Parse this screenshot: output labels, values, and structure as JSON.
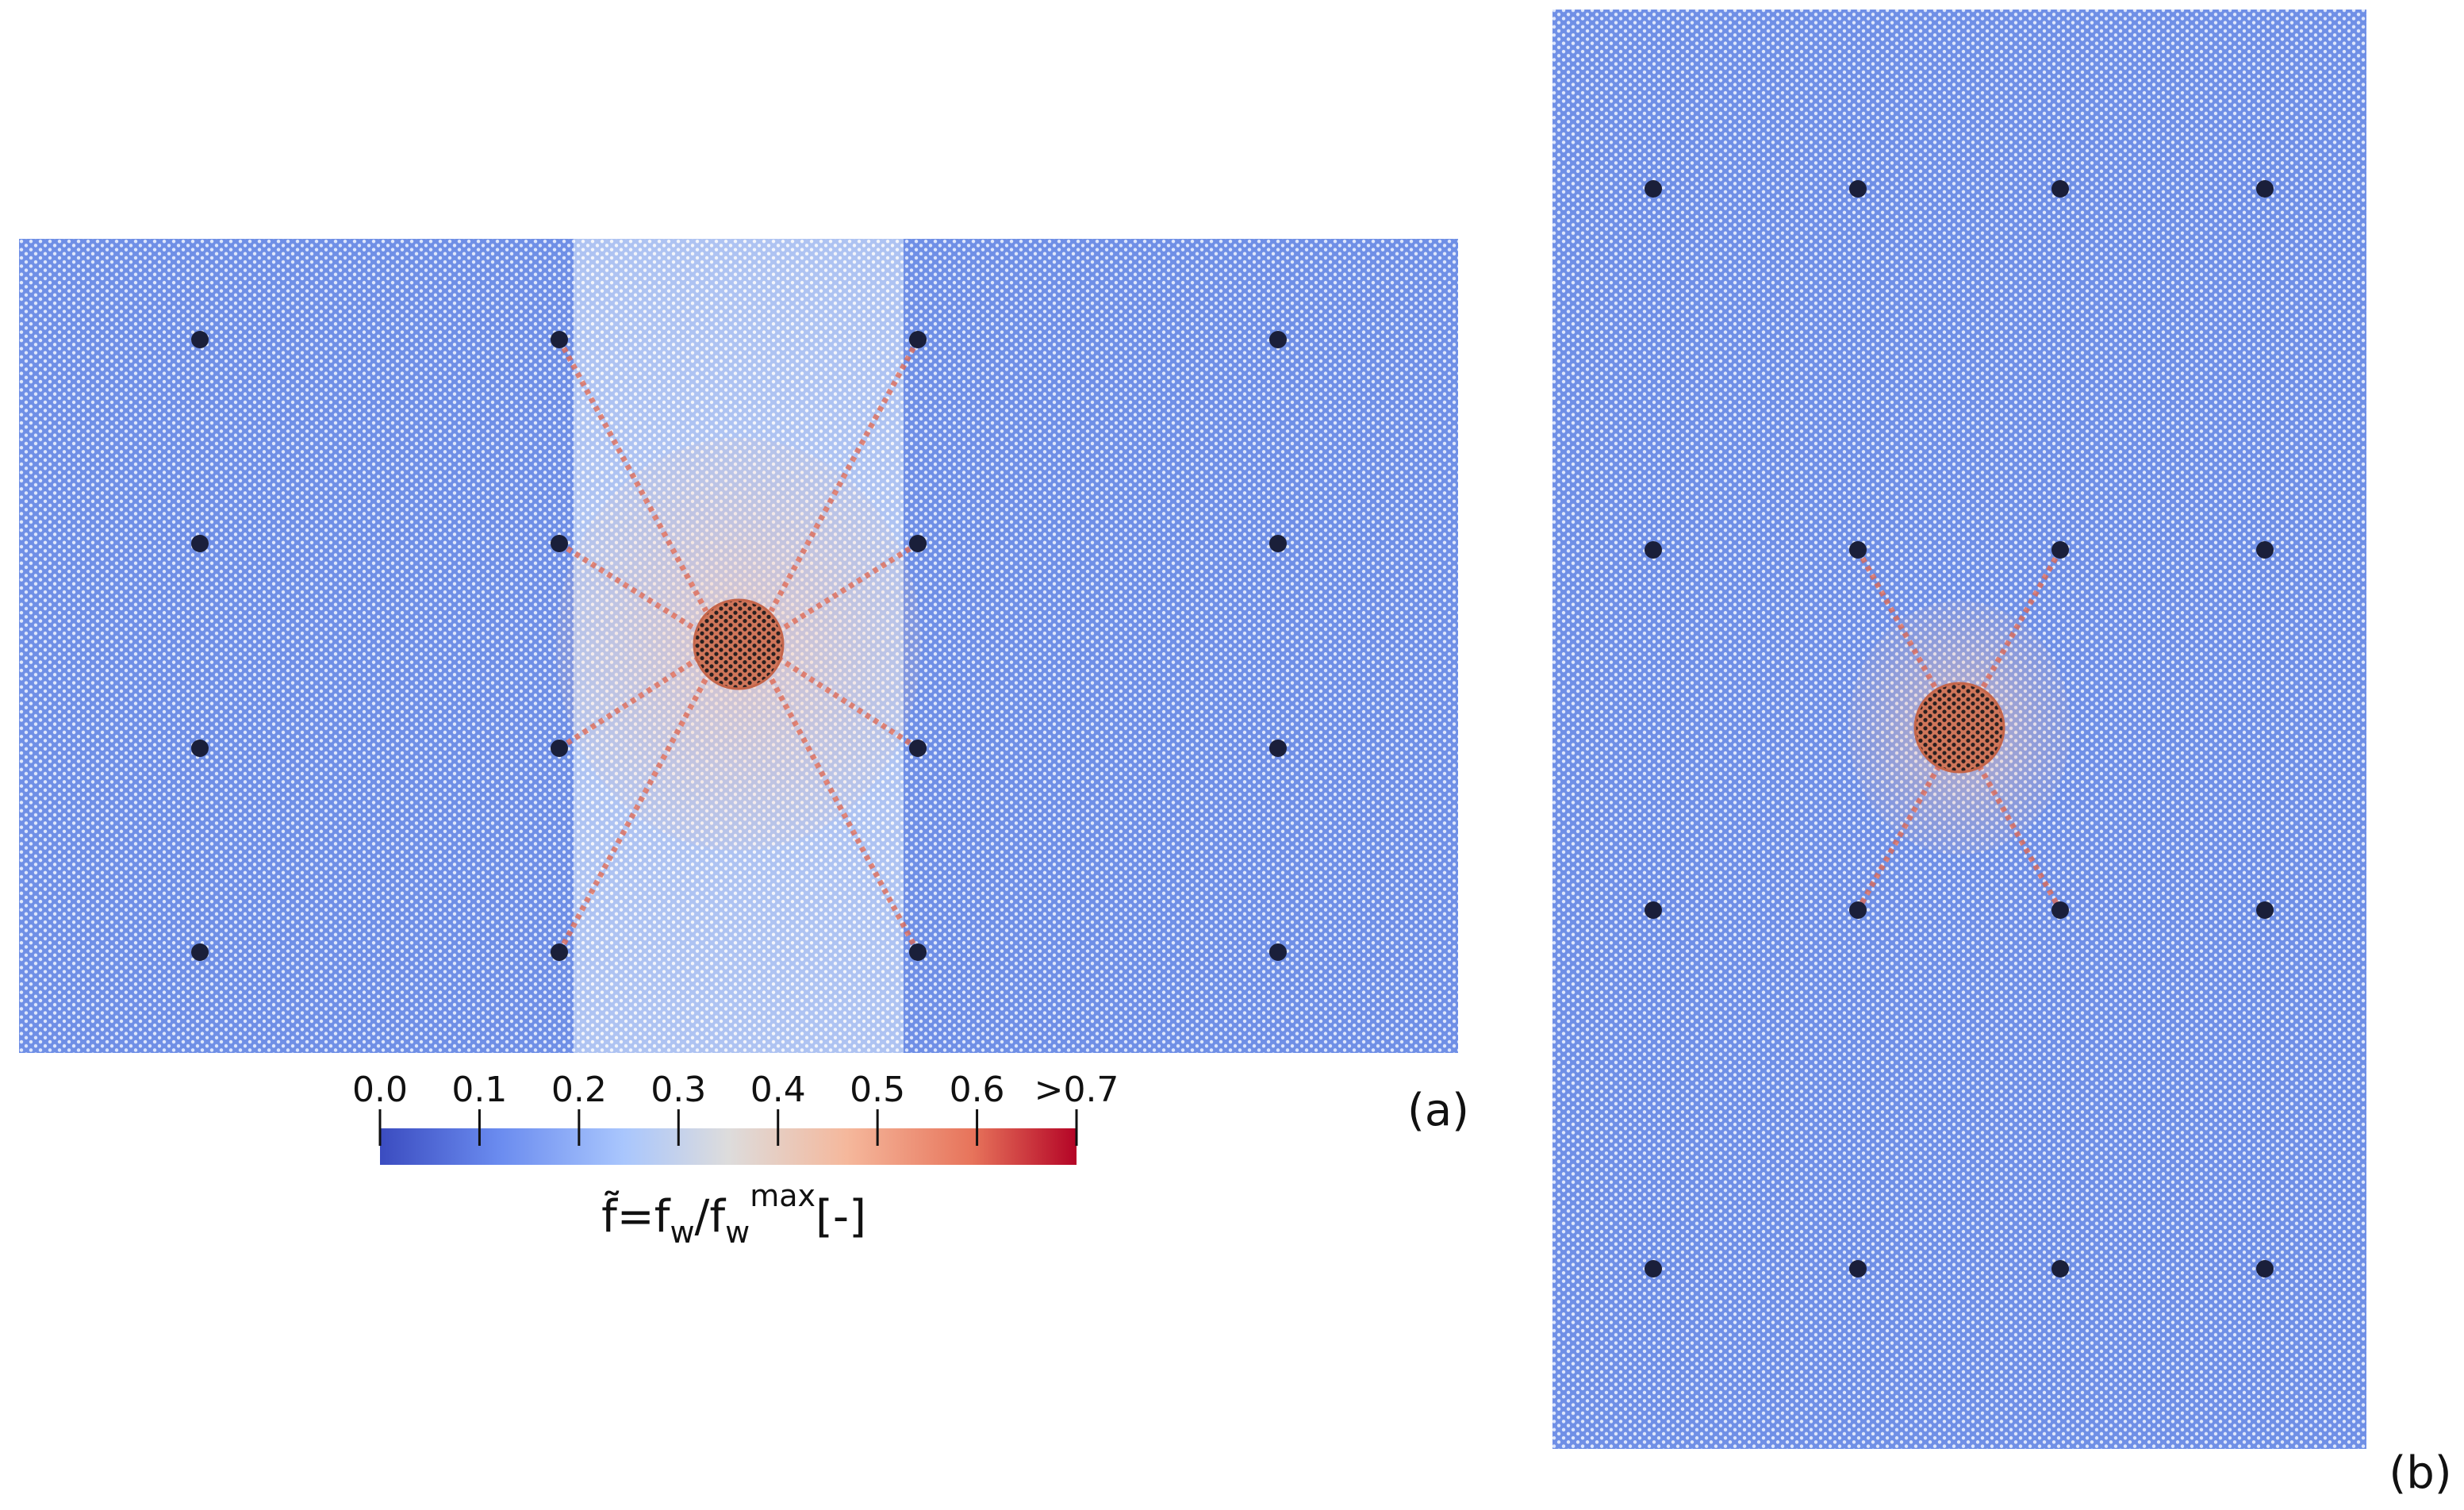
{
  "figure": {
    "panels": [
      {
        "label": "(a)"
      },
      {
        "label": "(b)"
      }
    ],
    "colorbar": {
      "ticks": [
        "0.0",
        "0.1",
        "0.2",
        "0.3",
        "0.4",
        "0.5",
        "0.6",
        ">0.7"
      ],
      "tick_values": [
        0.0,
        0.1,
        0.2,
        0.3,
        0.4,
        0.5,
        0.6,
        0.7
      ],
      "range": [
        0.0,
        0.7
      ],
      "colormap": [
        "#3b4cc0",
        "#7396f5",
        "#b0cbfc",
        "#dddddd",
        "#f4c4ac",
        "#ee8468",
        "#b40426"
      ],
      "label": {
        "main": "f̃=f",
        "sub1": "w",
        "mid": "/f",
        "sub2": "w",
        "sup": "max",
        "tail": "[-]"
      }
    },
    "colors": {
      "lattice": "#6f8fe6",
      "band": "#c9d6f2",
      "high_force": "#e0664d",
      "anchor": "#1a1f3a",
      "disk": "#c4654a"
    }
  }
}
